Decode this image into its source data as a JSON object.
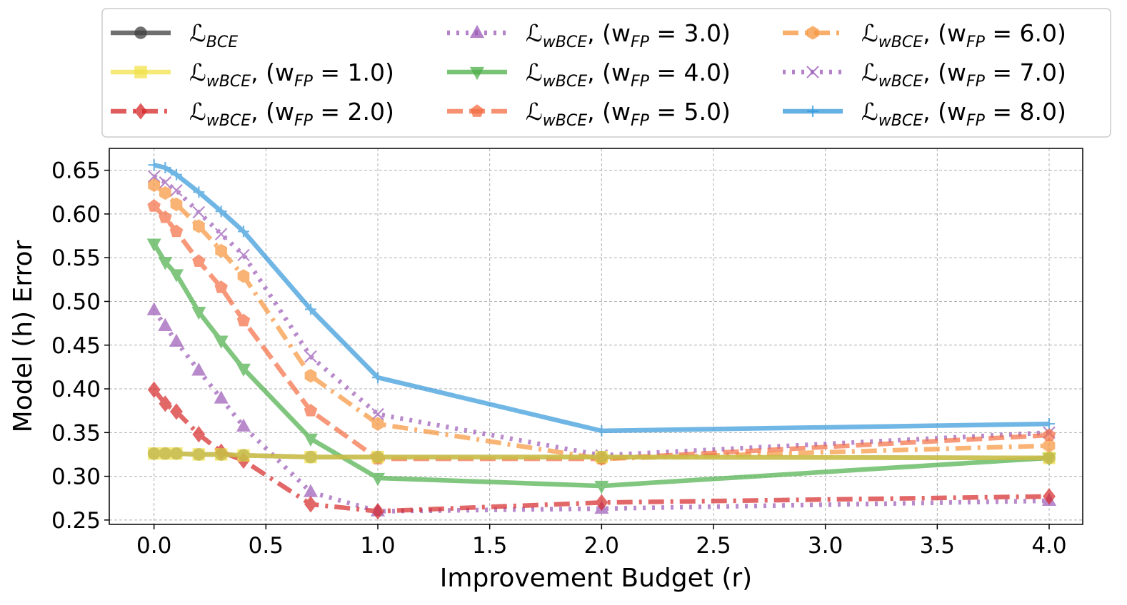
{
  "chart_data": {
    "type": "line",
    "title": "",
    "xlabel": "Improvement Budget (r)",
    "ylabel": "Model (h) Error",
    "xlim": [
      -0.2,
      4.15
    ],
    "ylim": [
      0.245,
      0.675
    ],
    "xticks": [
      0.0,
      0.5,
      1.0,
      1.5,
      2.0,
      2.5,
      3.0,
      3.5,
      4.0
    ],
    "yticks": [
      0.25,
      0.3,
      0.35,
      0.4,
      0.45,
      0.5,
      0.55,
      0.6,
      0.65
    ],
    "xtick_labels": [
      "0.0",
      "0.5",
      "1.0",
      "1.5",
      "2.0",
      "2.5",
      "3.0",
      "3.5",
      "4.0"
    ],
    "ytick_labels": [
      "0.25",
      "0.30",
      "0.35",
      "0.40",
      "0.45",
      "0.50",
      "0.55",
      "0.60",
      "0.65"
    ],
    "grid": true,
    "legend_position": "top, outside plot, 3 columns",
    "series": [
      {
        "name": "L_BCE",
        "label_main": "ℒ",
        "label_sub": "BCE",
        "label_rest": "",
        "color": "#404040",
        "marker": "circle",
        "dash": "solid",
        "x": [
          0.0,
          0.05,
          0.1,
          0.2,
          0.3,
          0.4,
          0.7,
          1.0,
          2.0,
          4.0
        ],
        "values": [
          0.326,
          0.326,
          0.326,
          0.325,
          0.325,
          0.324,
          0.322,
          0.322,
          0.322,
          0.321
        ]
      },
      {
        "name": "L_wBCE, (w_FP = 1.0)",
        "label_main": "ℒ",
        "label_sub": "wBCE",
        "label_rest": ", (w",
        "label_sub2": "FP",
        "label_val": " = 1.0)",
        "color": "#f2e24a",
        "marker": "square",
        "dash": "solid",
        "x": [
          0.0,
          0.05,
          0.1,
          0.2,
          0.3,
          0.4,
          0.7,
          1.0,
          2.0,
          4.0
        ],
        "values": [
          0.326,
          0.326,
          0.326,
          0.325,
          0.325,
          0.324,
          0.322,
          0.322,
          0.322,
          0.321
        ]
      },
      {
        "name": "L_wBCE, (w_FP = 2.0)",
        "label_main": "ℒ",
        "label_sub": "wBCE",
        "label_rest": ", (w",
        "label_sub2": "FP",
        "label_val": " = 2.0)",
        "color": "#d62728",
        "marker": "diamond",
        "dash": "dashdot",
        "x": [
          0.0,
          0.05,
          0.1,
          0.2,
          0.3,
          0.4,
          0.7,
          1.0,
          2.0,
          4.0
        ],
        "values": [
          0.399,
          0.383,
          0.374,
          0.348,
          0.328,
          0.318,
          0.268,
          0.26,
          0.27,
          0.277
        ]
      },
      {
        "name": "L_wBCE, (w_FP = 3.0)",
        "label_main": "ℒ",
        "label_sub": "wBCE",
        "label_rest": ", (w",
        "label_sub2": "FP",
        "label_val": " = 3.0)",
        "color": "#9b59b6",
        "marker": "triangle-up",
        "dash": "dotted",
        "x": [
          0.0,
          0.05,
          0.1,
          0.2,
          0.3,
          0.4,
          0.7,
          1.0,
          2.0,
          4.0
        ],
        "values": [
          0.49,
          0.472,
          0.454,
          0.421,
          0.389,
          0.357,
          0.282,
          0.26,
          0.263,
          0.272
        ]
      },
      {
        "name": "L_wBCE, (w_FP = 4.0)",
        "label_main": "ℒ",
        "label_sub": "wBCE",
        "label_rest": ", (w",
        "label_sub2": "FP",
        "label_val": " = 4.0)",
        "color": "#4daf4a",
        "marker": "triangle-down",
        "dash": "solid",
        "x": [
          0.0,
          0.05,
          0.1,
          0.2,
          0.3,
          0.4,
          0.7,
          1.0,
          2.0,
          4.0
        ],
        "values": [
          0.566,
          0.545,
          0.531,
          0.488,
          0.455,
          0.423,
          0.343,
          0.298,
          0.289,
          0.321
        ]
      },
      {
        "name": "L_wBCE, (w_FP = 5.0)",
        "label_main": "ℒ",
        "label_sub": "wBCE",
        "label_rest": ", (w",
        "label_sub2": "FP",
        "label_val": " = 5.0)",
        "color": "#f46d43",
        "marker": "pentagon",
        "dash": "dashed",
        "x": [
          0.0,
          0.05,
          0.1,
          0.2,
          0.3,
          0.4,
          0.7,
          1.0,
          2.0,
          4.0
        ],
        "values": [
          0.609,
          0.596,
          0.58,
          0.546,
          0.516,
          0.478,
          0.375,
          0.32,
          0.32,
          0.347
        ]
      },
      {
        "name": "L_wBCE, (w_FP = 6.0)",
        "label_main": "ℒ",
        "label_sub": "wBCE",
        "label_rest": ", (w",
        "label_sub2": "FP",
        "label_val": " = 6.0)",
        "color": "#f7953b",
        "marker": "hexagon",
        "dash": "dashdot",
        "x": [
          0.0,
          0.05,
          0.1,
          0.2,
          0.3,
          0.4,
          0.7,
          1.0,
          2.0,
          4.0
        ],
        "values": [
          0.633,
          0.624,
          0.611,
          0.586,
          0.558,
          0.529,
          0.415,
          0.36,
          0.32,
          0.335
        ]
      },
      {
        "name": "L_wBCE, (w_FP = 7.0)",
        "label_main": "ℒ",
        "label_sub": "wBCE",
        "label_rest": ", (w",
        "label_sub2": "FP",
        "label_val": " = 7.0)",
        "color": "#9b59b6",
        "marker": "x",
        "dash": "dotted",
        "x": [
          0.0,
          0.05,
          0.1,
          0.2,
          0.3,
          0.4,
          0.7,
          1.0,
          2.0,
          4.0
        ],
        "values": [
          0.643,
          0.636,
          0.627,
          0.602,
          0.577,
          0.553,
          0.437,
          0.371,
          0.324,
          0.35
        ]
      },
      {
        "name": "L_wBCE, (w_FP = 8.0)",
        "label_main": "ℒ",
        "label_sub": "wBCE",
        "label_rest": ", (w",
        "label_sub2": "FP",
        "label_val": " = 8.0)",
        "color": "#3498db",
        "marker": "plus",
        "dash": "solid",
        "x": [
          0.0,
          0.05,
          0.1,
          0.2,
          0.3,
          0.4,
          0.7,
          1.0,
          2.0,
          4.0
        ],
        "values": [
          0.656,
          0.653,
          0.645,
          0.625,
          0.603,
          0.58,
          0.491,
          0.413,
          0.352,
          0.36
        ]
      }
    ]
  }
}
